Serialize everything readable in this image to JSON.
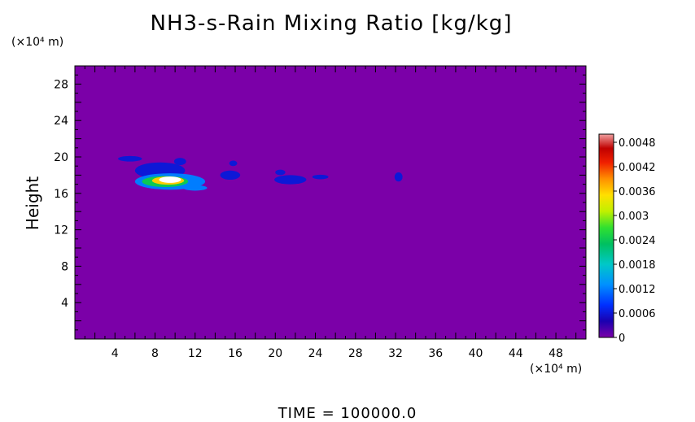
{
  "chart_data": {
    "type": "heatmap",
    "title": "NH3-s-Rain Mixing Ratio [kg/kg]",
    "ylabel": "Height",
    "x_unit": "(×10⁴ m)",
    "y_unit": "(×10⁴ m)",
    "xlim": [
      0,
      51
    ],
    "ylim": [
      0,
      30
    ],
    "x_ticks": [
      "4",
      "8",
      "12",
      "16",
      "20",
      "24",
      "28",
      "32",
      "36",
      "40",
      "44",
      "48"
    ],
    "y_ticks": [
      "4",
      "8",
      "12",
      "16",
      "20",
      "24",
      "28"
    ],
    "background_value": 0,
    "colorbar": {
      "labels": [
        "0.0048",
        "0.0042",
        "0.0036",
        "0.003",
        "0.0024",
        "0.0018",
        "0.0012",
        "0.0006",
        "0"
      ],
      "range": [
        0,
        0.005
      ]
    },
    "features": [
      {
        "x": 5.5,
        "y": 19.8,
        "rx": 1.2,
        "ry": 0.3,
        "value": 0.0006
      },
      {
        "x": 8.5,
        "y": 18.5,
        "rx": 2.5,
        "ry": 0.9,
        "value": 0.0006
      },
      {
        "x": 9.5,
        "y": 17.3,
        "rx": 3.5,
        "ry": 0.9,
        "value": 0.0012
      },
      {
        "x": 9.0,
        "y": 17.3,
        "rx": 2.3,
        "ry": 0.6,
        "value": 0.0024
      },
      {
        "x": 9.3,
        "y": 17.4,
        "rx": 1.6,
        "ry": 0.45,
        "value": 0.0036
      },
      {
        "x": 9.5,
        "y": 17.5,
        "rx": 1.1,
        "ry": 0.35,
        "value": 0.005
      },
      {
        "x": 12.0,
        "y": 16.6,
        "rx": 1.2,
        "ry": 0.3,
        "value": 0.0012
      },
      {
        "x": 10.5,
        "y": 19.5,
        "rx": 0.6,
        "ry": 0.4,
        "value": 0.0006
      },
      {
        "x": 15.5,
        "y": 18.0,
        "rx": 1.0,
        "ry": 0.5,
        "value": 0.0006
      },
      {
        "x": 15.8,
        "y": 19.3,
        "rx": 0.4,
        "ry": 0.3,
        "value": 0.0006
      },
      {
        "x": 21.5,
        "y": 17.5,
        "rx": 1.6,
        "ry": 0.5,
        "value": 0.0006
      },
      {
        "x": 20.5,
        "y": 18.3,
        "rx": 0.5,
        "ry": 0.3,
        "value": 0.0006
      },
      {
        "x": 24.5,
        "y": 17.8,
        "rx": 0.8,
        "ry": 0.25,
        "value": 0.0006
      },
      {
        "x": 32.3,
        "y": 17.8,
        "rx": 0.4,
        "ry": 0.5,
        "value": 0.0006
      }
    ]
  },
  "time_label": "TIME = 100000.0"
}
